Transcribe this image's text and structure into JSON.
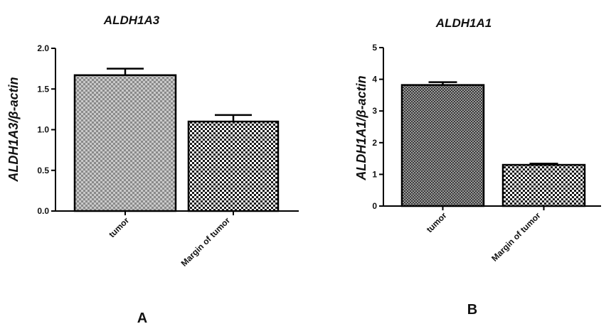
{
  "chart_data": [
    {
      "type": "bar",
      "title": "ALDH1A3",
      "ylabel": "ALDH1A3/β-actin",
      "xlabel": "",
      "panel_label": "A",
      "categories": [
        "tumor",
        "Margin of tumor"
      ],
      "values": [
        1.67,
        1.1
      ],
      "error": [
        0.08,
        0.08
      ],
      "ylim": [
        0,
        2.0
      ],
      "yticks": [
        "0.0",
        "0.5",
        "1.0",
        "1.5",
        "2.0"
      ],
      "ytick_values": [
        0,
        0.5,
        1.0,
        1.5,
        2.0
      ],
      "grid": false,
      "legend": "none"
    },
    {
      "type": "bar",
      "title": "ALDH1A1",
      "ylabel": "ALDH1A1/β-actin",
      "xlabel": "",
      "panel_label": "B",
      "categories": [
        "tumor",
        "Margin of tumor"
      ],
      "values": [
        3.82,
        1.3
      ],
      "error": [
        0.09,
        0.04
      ],
      "ylim": [
        0,
        5
      ],
      "yticks": [
        "0",
        "1",
        "2",
        "3",
        "4",
        "5"
      ],
      "ytick_values": [
        0,
        1,
        2,
        3,
        4,
        5
      ],
      "grid": false,
      "legend": "none"
    }
  ]
}
